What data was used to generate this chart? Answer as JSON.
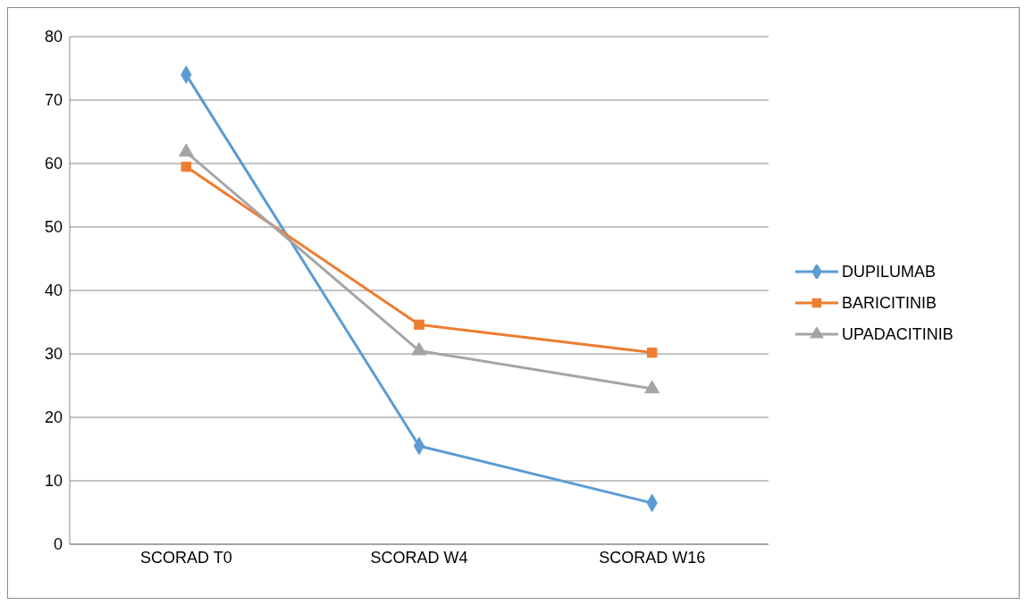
{
  "chart_data": {
    "type": "line",
    "categories": [
      "SCORAD T0",
      "SCORAD W4",
      "SCORAD W16"
    ],
    "series": [
      {
        "name": "DUPILUMAB",
        "color": "#5b9bd5",
        "marker": "diamond",
        "values": [
          74,
          15.5,
          6.5
        ]
      },
      {
        "name": "BARICITINIB",
        "color": "#ed7d31",
        "marker": "square",
        "values": [
          59.5,
          34.6,
          30.2
        ]
      },
      {
        "name": "UPADACITINIB",
        "color": "#a5a5a5",
        "marker": "triangle",
        "values": [
          61.8,
          30.5,
          24.5
        ]
      }
    ],
    "ylim": [
      0,
      80
    ],
    "yticks": [
      0,
      10,
      20,
      30,
      40,
      50,
      60,
      70,
      80
    ],
    "grid": "y",
    "legend": "right"
  }
}
